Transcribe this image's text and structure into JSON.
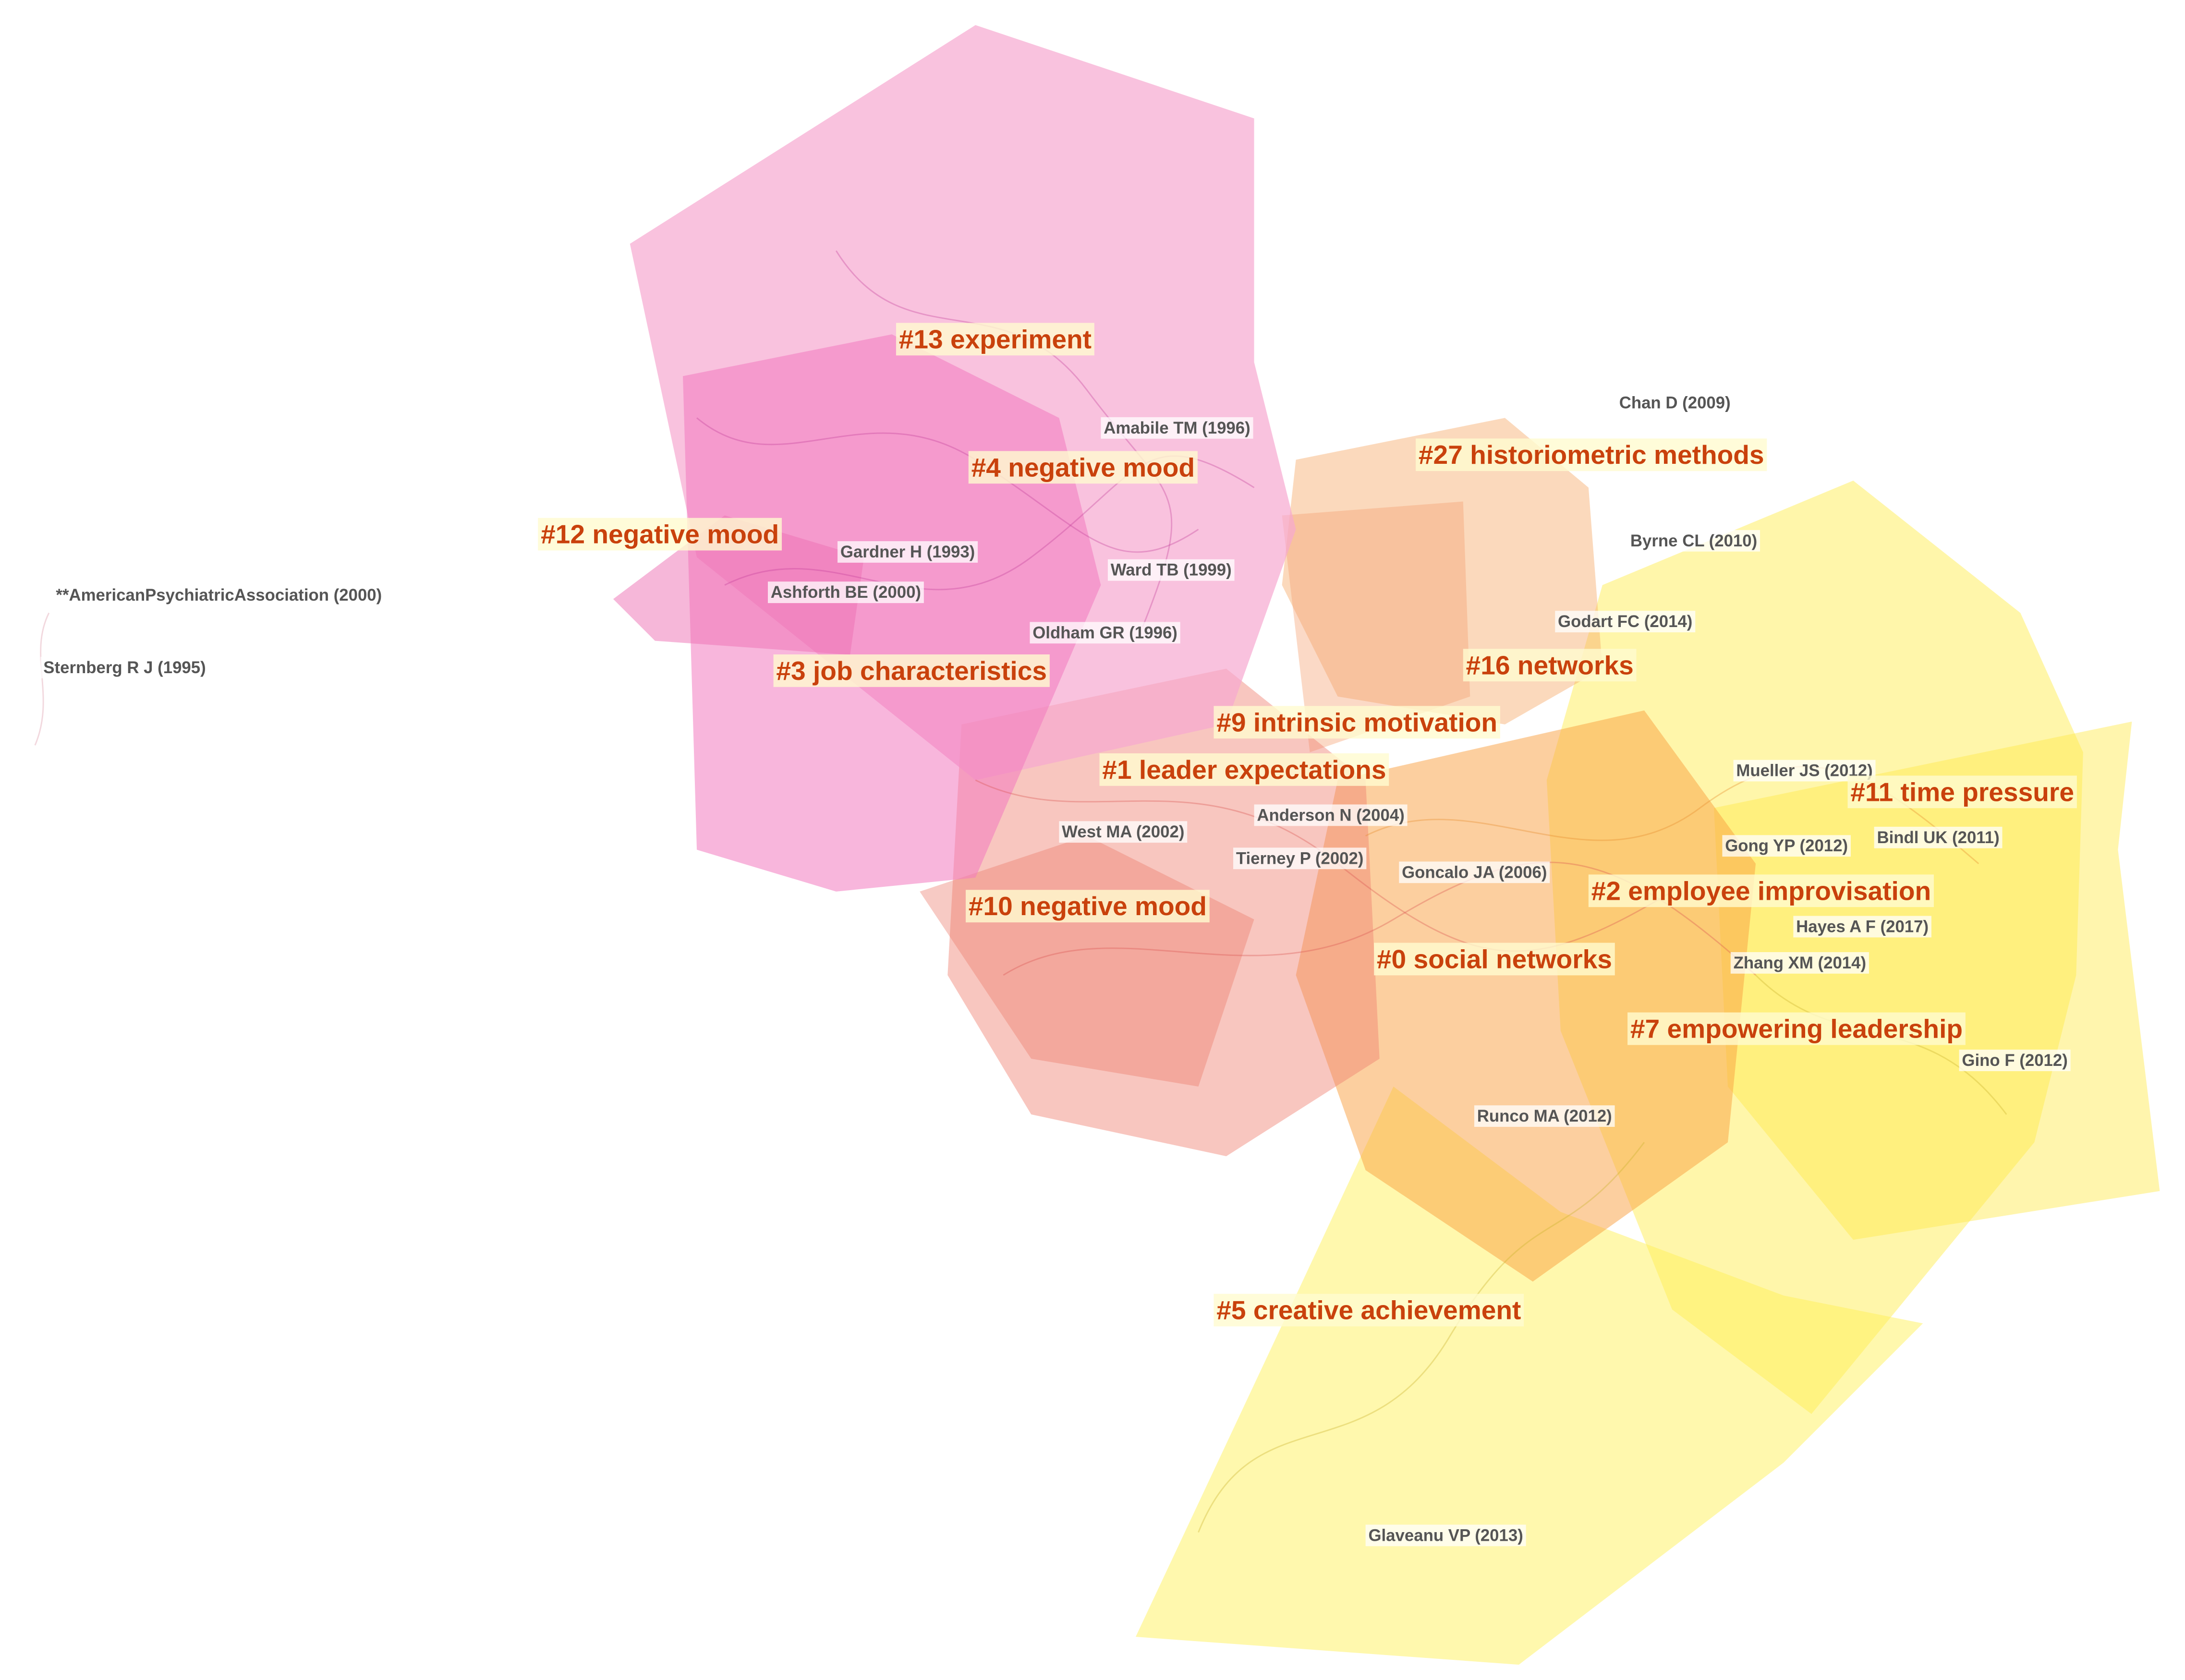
{
  "clusters": [
    {
      "label": "#13 experiment"
    },
    {
      "label": "#4 negative mood"
    },
    {
      "label": "#12 negative mood"
    },
    {
      "label": "#27 historiometric methods"
    },
    {
      "label": "#3 job characteristics"
    },
    {
      "label": "#16 networks"
    },
    {
      "label": "#9 intrinsic motivation"
    },
    {
      "label": "#1 leader expectations"
    },
    {
      "label": "#11 time pressure"
    },
    {
      "label": "#2 employee improvisation"
    },
    {
      "label": "#10 negative mood"
    },
    {
      "label": "#0 social networks"
    },
    {
      "label": "#7 empowering leadership"
    },
    {
      "label": "#5 creative achievement"
    }
  ],
  "nodes": [
    {
      "label": "Chan D (2009)"
    },
    {
      "label": "Amabile TM (1996)"
    },
    {
      "label": "Byrne CL (2010)"
    },
    {
      "label": "Gardner H (1993)"
    },
    {
      "label": "**AmericanPsychiatricAssociation (2000)"
    },
    {
      "label": "Ashforth BE (2000)"
    },
    {
      "label": "Ward TB (1999)"
    },
    {
      "label": "Godart FC (2014)"
    },
    {
      "label": "Oldham GR (1996)"
    },
    {
      "label": "Sternberg R J (1995)"
    },
    {
      "label": "Mueller JS (2012)"
    },
    {
      "label": "Anderson N (2004)"
    },
    {
      "label": "West MA (2002)"
    },
    {
      "label": "Tierney P (2002)"
    },
    {
      "label": "Gong YP (2012)"
    },
    {
      "label": "Bindl UK (2011)"
    },
    {
      "label": "Goncalo JA (2006)"
    },
    {
      "label": "Hayes A F (2017)"
    },
    {
      "label": "Zhang XM (2014)"
    },
    {
      "label": "Gino F (2012)"
    },
    {
      "label": "Runco MA (2012)"
    },
    {
      "label": "Glaveanu VP (2013)"
    }
  ]
}
